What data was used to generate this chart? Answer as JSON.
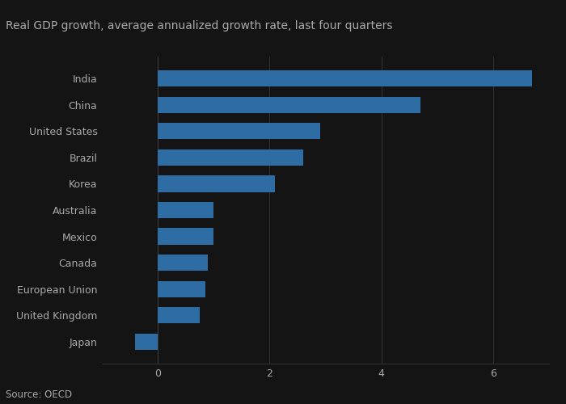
{
  "title": "Real GDP growth, average annualized growth rate, last four quarters",
  "source": "Source: OECD",
  "categories": [
    "India",
    "China",
    "United States",
    "Brazil",
    "Korea",
    "Australia",
    "Mexico",
    "Canada",
    "European Union",
    "United Kingdom",
    "Japan"
  ],
  "values": [
    6.7,
    4.7,
    2.9,
    2.6,
    2.1,
    1.0,
    1.0,
    0.9,
    0.85,
    0.75,
    -0.4
  ],
  "bar_color": "#2e6da4",
  "background_color": "#141414",
  "text_color": "#aaaaaa",
  "grid_color": "#3a3a3a",
  "xlim": [
    -1,
    7
  ],
  "xticks": [
    0,
    2,
    4,
    6
  ],
  "title_fontsize": 10,
  "label_fontsize": 9,
  "source_fontsize": 8.5
}
